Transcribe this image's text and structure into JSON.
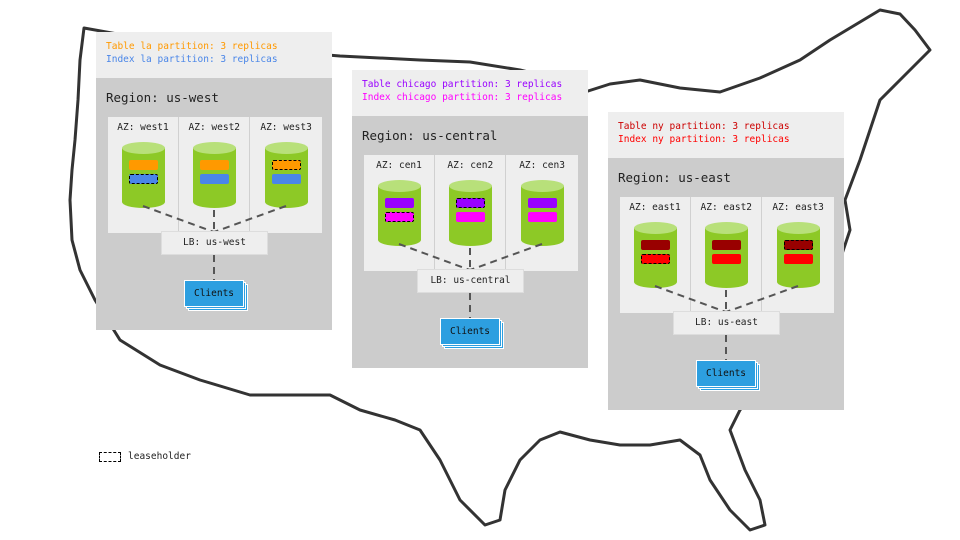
{
  "regions": [
    {
      "id": "us-west",
      "label": "Region: us-west",
      "table_line": "Table la partition: 3 replicas",
      "index_line": "Index la partition: 3 replicas",
      "table_color": "#ff9900",
      "index_color": "#4a86e8",
      "table_text_color": "#ff9900",
      "index_text_color": "#4a86e8",
      "azs": [
        {
          "label": "AZ: west1",
          "leaseholder": "index"
        },
        {
          "label": "AZ: west2",
          "leaseholder": "none"
        },
        {
          "label": "AZ: west3",
          "leaseholder": "table"
        }
      ],
      "lb": "LB: us-west",
      "clients": "Clients"
    },
    {
      "id": "us-central",
      "label": "Region: us-central",
      "table_line": "Table chicago partition: 3 replicas",
      "index_line": "Index chicago partition: 3 replicas",
      "table_color": "#9900ff",
      "index_color": "#ff00ff",
      "table_text_color": "#9900ff",
      "index_text_color": "#ff00ff",
      "azs": [
        {
          "label": "AZ: cen1",
          "leaseholder": "index"
        },
        {
          "label": "AZ: cen2",
          "leaseholder": "table"
        },
        {
          "label": "AZ: cen3",
          "leaseholder": "none"
        }
      ],
      "lb": "LB: us-central",
      "clients": "Clients"
    },
    {
      "id": "us-east",
      "label": "Region: us-east",
      "table_line": "Table ny partition: 3 replicas",
      "index_line": "Index ny partition: 3 replicas",
      "table_color": "#990000",
      "index_color": "#ff0000",
      "table_text_color": "#cc0000",
      "index_text_color": "#ff0000",
      "azs": [
        {
          "label": "AZ: east1",
          "leaseholder": "index"
        },
        {
          "label": "AZ: east2",
          "leaseholder": "none"
        },
        {
          "label": "AZ: east3",
          "leaseholder": "table"
        }
      ],
      "lb": "LB: us-east",
      "clients": "Clients"
    }
  ],
  "legend": {
    "leaseholder_label": "leaseholder"
  }
}
